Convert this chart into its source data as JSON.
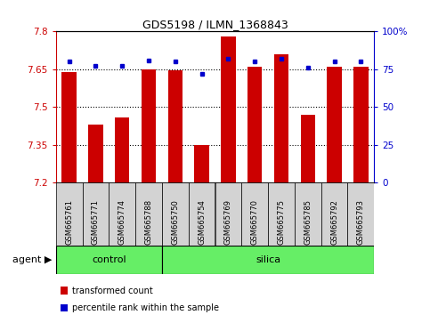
{
  "title": "GDS5198 / ILMN_1368843",
  "samples": [
    "GSM665761",
    "GSM665771",
    "GSM665774",
    "GSM665788",
    "GSM665750",
    "GSM665754",
    "GSM665769",
    "GSM665770",
    "GSM665775",
    "GSM665785",
    "GSM665792",
    "GSM665793"
  ],
  "red_values": [
    7.64,
    7.43,
    7.46,
    7.65,
    7.645,
    7.35,
    7.78,
    7.66,
    7.71,
    7.47,
    7.66,
    7.66
  ],
  "blue_values": [
    80,
    77,
    77,
    81,
    80,
    72,
    82,
    80,
    82,
    76,
    80,
    80
  ],
  "control_count": 4,
  "silica_count": 8,
  "ymin": 7.2,
  "ymax": 7.8,
  "yticks": [
    7.2,
    7.35,
    7.5,
    7.65,
    7.8
  ],
  "right_yticks": [
    0,
    25,
    50,
    75,
    100
  ],
  "right_ytick_labels": [
    "0",
    "25",
    "50",
    "75",
    "100%"
  ],
  "bar_color": "#cc0000",
  "dot_color": "#0000cc",
  "control_color": "#66ee66",
  "silica_color": "#66ee66",
  "agent_label": "agent",
  "control_label": "control",
  "silica_label": "silica",
  "legend_red": "transformed count",
  "legend_blue": "percentile rank within the sample",
  "grid_dotted_at": [
    7.35,
    7.5,
    7.65
  ],
  "plot_bg_color": "#ffffff",
  "tick_label_gray": "#d3d3d3"
}
